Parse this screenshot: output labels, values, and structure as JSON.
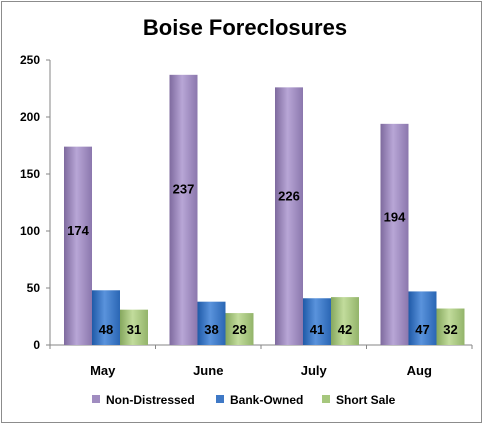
{
  "chart_data": {
    "type": "bar",
    "title": "Boise Foreclosures",
    "categories": [
      "May",
      "June",
      "July",
      "Aug"
    ],
    "series": [
      {
        "name": "Non-Distressed",
        "values": [
          174,
          237,
          226,
          194
        ],
        "color": "#a08cc0"
      },
      {
        "name": "Bank-Owned",
        "values": [
          48,
          38,
          41,
          47
        ],
        "color": "#3f79c6"
      },
      {
        "name": "Short Sale",
        "values": [
          31,
          28,
          42,
          32
        ],
        "color": "#a6c77d"
      }
    ],
    "ylim": [
      0,
      250
    ],
    "yticks": [
      0,
      50,
      100,
      150,
      200,
      250
    ],
    "grid": false,
    "legend_position": "bottom",
    "data_labels": true
  }
}
